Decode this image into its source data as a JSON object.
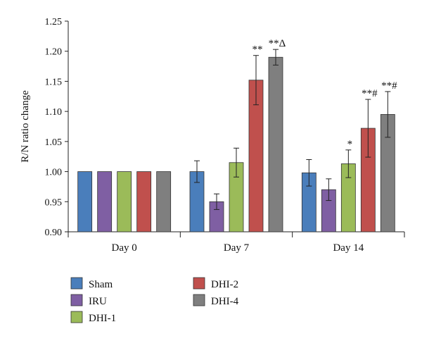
{
  "chart_data": {
    "type": "bar",
    "title": "",
    "xlabel": "",
    "ylabel": "R/N ratio change",
    "ylim": [
      0.9,
      1.25
    ],
    "yticks": [
      "0.90",
      "0.95",
      "1.00",
      "1.05",
      "1.10",
      "1.15",
      "1.20",
      "1.25"
    ],
    "grid": false,
    "legend_position": "bottom-left",
    "categories": [
      "Day 0",
      "Day 7",
      "Day 14"
    ],
    "series": [
      {
        "name": "Sham",
        "color": "#4a7ebb",
        "values": [
          1.0,
          1.0,
          0.998
        ],
        "errors": [
          0,
          0.018,
          0.022
        ],
        "annotations": [
          "",
          "",
          ""
        ]
      },
      {
        "name": "IRU",
        "color": "#7f5fa3",
        "values": [
          1.0,
          0.95,
          0.97
        ],
        "errors": [
          0,
          0.013,
          0.018
        ],
        "annotations": [
          "",
          "",
          ""
        ]
      },
      {
        "name": "DHI-1",
        "color": "#9bbb59",
        "values": [
          1.0,
          1.015,
          1.013
        ],
        "errors": [
          0,
          0.024,
          0.023
        ],
        "annotations": [
          "",
          "",
          "*"
        ]
      },
      {
        "name": "DHI-2",
        "color": "#c0504d",
        "values": [
          1.0,
          1.152,
          1.072
        ],
        "errors": [
          0,
          0.041,
          0.048
        ],
        "annotations": [
          "",
          "**",
          "**#"
        ]
      },
      {
        "name": "DHI-4",
        "color": "#7f7f7f",
        "values": [
          1.0,
          1.19,
          1.095
        ],
        "errors": [
          0,
          0.013,
          0.038
        ],
        "annotations": [
          "",
          "**Δ",
          "**#"
        ]
      }
    ]
  }
}
